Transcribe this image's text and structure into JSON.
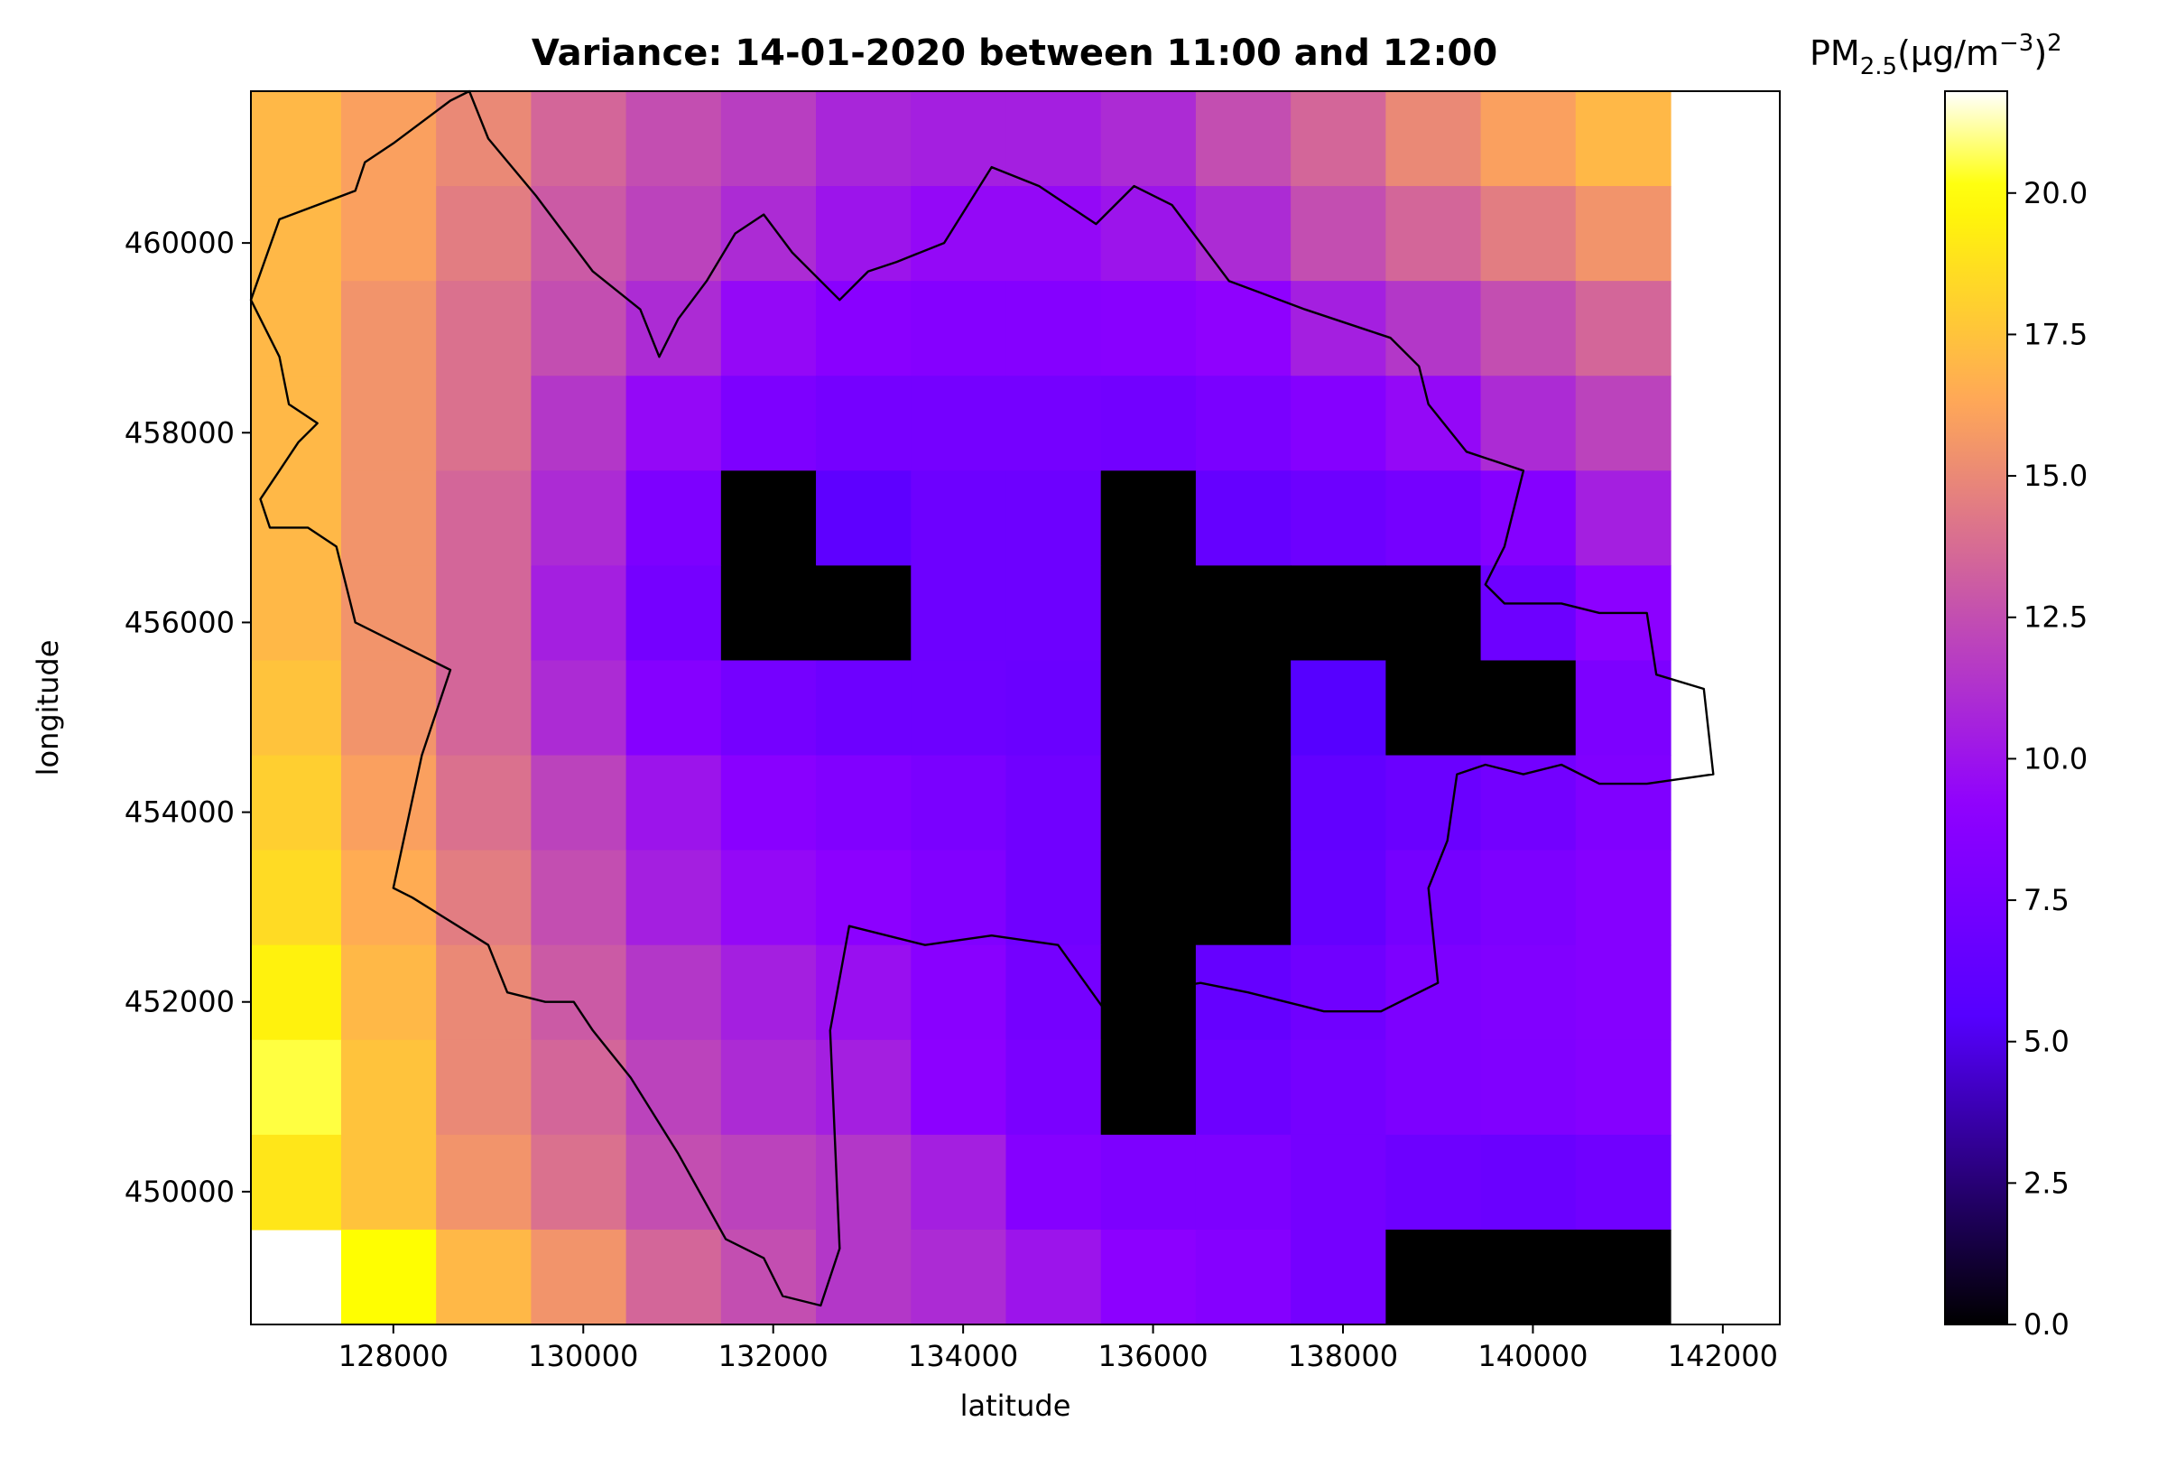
{
  "chart_data": {
    "type": "heatmap",
    "title": "Variance: 14-01-2020 between 11:00 and 12:00",
    "xlabel": "latitude",
    "ylabel": "longitude",
    "colorbar_label": "PM2.5(µg/m−3)2",
    "colorbar_label_parts": {
      "base": "PM",
      "sub": "2.5",
      "unit": "(µg/m",
      "sup1": "−3",
      "close": ")",
      "sup2": "2"
    },
    "colormap": "gnuplot2",
    "xlim": [
      126500,
      142600
    ],
    "ylim": [
      448600,
      461600
    ],
    "x_ticks": [
      128000,
      130000,
      132000,
      134000,
      136000,
      138000,
      140000,
      142000
    ],
    "x_tick_labels": [
      "128000",
      "130000",
      "132000",
      "134000",
      "136000",
      "138000",
      "140000",
      "142000"
    ],
    "y_ticks": [
      450000,
      452000,
      454000,
      456000,
      458000,
      460000
    ],
    "y_tick_labels": [
      "450000",
      "452000",
      "454000",
      "456000",
      "458000",
      "460000"
    ],
    "colorbar_range": [
      0,
      21.8
    ],
    "colorbar_ticks": [
      0,
      2.5,
      5,
      7.5,
      10,
      12.5,
      15,
      17.5,
      20
    ],
    "colorbar_tick_labels": [
      "0.0",
      "2.5",
      "5.0",
      "7.5",
      "10.0",
      "12.5",
      "15.0",
      "17.5",
      "20.0"
    ],
    "grid": {
      "x_edges": [
        126450,
        127450,
        128450,
        129450,
        130450,
        131450,
        132450,
        133450,
        134450,
        135450,
        136450,
        137450,
        138450,
        139450,
        140450,
        141450
      ],
      "y_edges_top_to_bottom": [
        461600,
        460600,
        459600,
        458600,
        457600,
        456600,
        455600,
        454600,
        453600,
        452600,
        451600,
        450600,
        449600,
        448600
      ],
      "values_top_to_bottom": [
        [
          17.0,
          16.0,
          15.0,
          13.5,
          12.5,
          11.8,
          10.8,
          10.5,
          10.5,
          11.0,
          12.5,
          13.5,
          15.0,
          16.0,
          17.0
        ],
        [
          17.0,
          16.0,
          14.5,
          13.0,
          12.0,
          11.0,
          10.0,
          9.5,
          9.5,
          10.0,
          11.0,
          12.5,
          13.5,
          14.5,
          15.5
        ],
        [
          17.0,
          15.5,
          14.0,
          12.5,
          11.0,
          9.5,
          8.8,
          8.5,
          8.5,
          8.7,
          9.2,
          10.5,
          11.5,
          12.5,
          13.5
        ],
        [
          17.0,
          15.5,
          14.0,
          11.5,
          9.5,
          8.0,
          7.5,
          7.5,
          7.5,
          7.3,
          7.8,
          8.5,
          9.5,
          11.0,
          12.0
        ],
        [
          17.0,
          15.5,
          13.5,
          11.0,
          8.0,
          0.0,
          6.0,
          7.0,
          7.0,
          0.0,
          6.5,
          7.0,
          7.5,
          8.5,
          10.5
        ],
        [
          17.0,
          15.5,
          13.5,
          10.5,
          7.5,
          0.0,
          0.0,
          7.0,
          7.0,
          0.0,
          0.0,
          0.0,
          0.0,
          7.0,
          9.0
        ],
        [
          17.5,
          15.5,
          13.5,
          11.0,
          8.5,
          7.5,
          7.0,
          7.0,
          6.8,
          0.0,
          0.0,
          5.5,
          0.0,
          0.0,
          8.0
        ],
        [
          18.0,
          16.0,
          14.0,
          12.0,
          10.0,
          8.8,
          8.3,
          7.8,
          7.2,
          0.0,
          0.0,
          6.3,
          6.8,
          7.4,
          8.2
        ],
        [
          18.5,
          16.5,
          14.5,
          12.5,
          10.5,
          9.5,
          9.0,
          8.3,
          7.2,
          0.0,
          0.0,
          6.5,
          7.5,
          8.0,
          8.5
        ],
        [
          19.5,
          17.0,
          15.0,
          13.0,
          11.5,
          10.5,
          9.8,
          8.8,
          7.5,
          0.0,
          6.5,
          7.2,
          8.0,
          8.3,
          8.5
        ],
        [
          20.5,
          17.5,
          15.0,
          13.5,
          12.0,
          11.0,
          10.5,
          9.0,
          7.8,
          0.0,
          7.0,
          7.5,
          8.0,
          8.2,
          8.5
        ],
        [
          19.0,
          17.5,
          15.5,
          14.0,
          12.5,
          12.0,
          11.5,
          10.5,
          8.5,
          8.0,
          8.0,
          7.5,
          7.0,
          6.8,
          7.2
        ],
        [
          null,
          20.0,
          17.0,
          15.5,
          13.5,
          12.5,
          11.5,
          11.0,
          10.0,
          9.0,
          8.5,
          7.5,
          0.0,
          0.0,
          0.0
        ]
      ]
    },
    "boundary_polygon": [
      [
        126500,
        459400
      ],
      [
        126800,
        460250
      ],
      [
        127600,
        460550
      ],
      [
        127700,
        460850
      ],
      [
        128000,
        461050
      ],
      [
        128600,
        461500
      ],
      [
        128800,
        461600
      ],
      [
        129000,
        461100
      ],
      [
        129500,
        460500
      ],
      [
        130100,
        459700
      ],
      [
        130600,
        459300
      ],
      [
        130800,
        458800
      ],
      [
        131000,
        459200
      ],
      [
        131300,
        459600
      ],
      [
        131600,
        460100
      ],
      [
        131900,
        460300
      ],
      [
        132200,
        459900
      ],
      [
        132700,
        459400
      ],
      [
        133000,
        459700
      ],
      [
        133300,
        459800
      ],
      [
        133800,
        460000
      ],
      [
        134300,
        460800
      ],
      [
        134800,
        460600
      ],
      [
        135400,
        460200
      ],
      [
        135800,
        460600
      ],
      [
        136200,
        460400
      ],
      [
        136800,
        459600
      ],
      [
        137600,
        459300
      ],
      [
        138200,
        459100
      ],
      [
        138500,
        459000
      ],
      [
        138800,
        458700
      ],
      [
        138900,
        458300
      ],
      [
        139300,
        457800
      ],
      [
        139900,
        457600
      ],
      [
        139700,
        456800
      ],
      [
        139500,
        456400
      ],
      [
        139700,
        456200
      ],
      [
        140300,
        456200
      ],
      [
        140700,
        456100
      ],
      [
        141200,
        456100
      ],
      [
        141300,
        455450
      ],
      [
        141800,
        455300
      ],
      [
        141900,
        454400
      ],
      [
        141200,
        454300
      ],
      [
        140700,
        454300
      ],
      [
        140300,
        454500
      ],
      [
        139900,
        454400
      ],
      [
        139500,
        454500
      ],
      [
        139200,
        454400
      ],
      [
        139100,
        453700
      ],
      [
        138900,
        453200
      ],
      [
        139000,
        452200
      ],
      [
        138400,
        451900
      ],
      [
        137800,
        451900
      ],
      [
        137000,
        452100
      ],
      [
        136500,
        452200
      ],
      [
        135900,
        452100
      ],
      [
        135500,
        451900
      ],
      [
        135000,
        452600
      ],
      [
        134300,
        452700
      ],
      [
        133600,
        452600
      ],
      [
        132800,
        452800
      ],
      [
        132600,
        451700
      ],
      [
        132700,
        449400
      ],
      [
        132500,
        448800
      ],
      [
        132100,
        448900
      ],
      [
        131900,
        449300
      ],
      [
        131500,
        449500
      ],
      [
        131000,
        450400
      ],
      [
        130500,
        451200
      ],
      [
        130100,
        451700
      ],
      [
        129900,
        452000
      ],
      [
        129600,
        452000
      ],
      [
        129200,
        452100
      ],
      [
        129000,
        452600
      ],
      [
        128200,
        453100
      ],
      [
        128000,
        453200
      ],
      [
        128300,
        454600
      ],
      [
        128600,
        455500
      ],
      [
        128000,
        455800
      ],
      [
        127600,
        456000
      ],
      [
        127400,
        456800
      ],
      [
        127100,
        457000
      ],
      [
        126700,
        457000
      ],
      [
        126600,
        457300
      ],
      [
        126800,
        457600
      ],
      [
        127000,
        457900
      ],
      [
        127200,
        458100
      ],
      [
        126900,
        458300
      ],
      [
        126800,
        458800
      ],
      [
        126500,
        459400
      ]
    ]
  }
}
